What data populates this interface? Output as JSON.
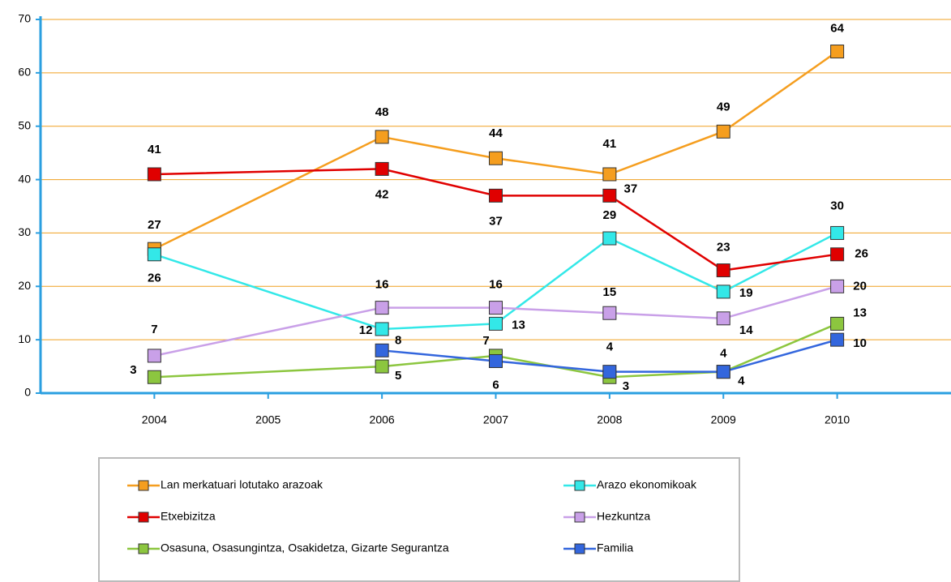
{
  "chart_data": {
    "type": "line",
    "x": [
      2004,
      2006,
      2007,
      2008,
      2009,
      2010
    ],
    "xlim": [
      2003,
      2011
    ],
    "xticks": [
      2004,
      2005,
      2006,
      2007,
      2008,
      2009,
      2010
    ],
    "ylim": [
      0,
      70
    ],
    "yticks": [
      0,
      10,
      20,
      30,
      40,
      50,
      60,
      70
    ],
    "grid": true,
    "legend": "bottom",
    "series": [
      {
        "name": "Lan merkatuari lotutako arazoak",
        "color": "#f59e1f",
        "values": [
          27,
          48,
          44,
          41,
          49,
          64
        ]
      },
      {
        "name": "Arazo ekonomikoak",
        "color": "#33e8e8",
        "values": [
          26,
          12,
          13,
          29,
          19,
          30
        ]
      },
      {
        "name": "Etxebizitza",
        "color": "#e00000",
        "values": [
          41,
          42,
          37,
          37,
          23,
          26
        ]
      },
      {
        "name": "Hezkuntza",
        "color": "#c9a0e8",
        "values": [
          7,
          16,
          16,
          15,
          14,
          20
        ]
      },
      {
        "name": "Osasuna, Osasungintza, Osakidetza, Gizarte Segurantza",
        "color": "#8cc63f",
        "values": [
          3,
          5,
          7,
          3,
          4,
          13
        ]
      },
      {
        "name": "Familia",
        "color": "#3366dd",
        "values": [
          null,
          8,
          6,
          4,
          4,
          10
        ]
      }
    ]
  }
}
